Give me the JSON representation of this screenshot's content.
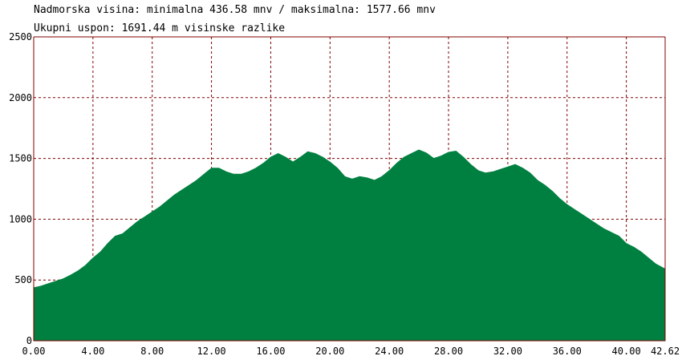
{
  "info": {
    "line1": "Nadmorska visina: minimalna 436.58 mnv / maksimalna: 1577.66 mnv",
    "line2": "Ukupni uspon: 1691.44 m visinske razlike"
  },
  "colors": {
    "fill": "#008040",
    "grid": "#800000",
    "axis": "#800000",
    "background": "#ffffff"
  },
  "chart_data": {
    "type": "area",
    "title": "",
    "xlabel": "",
    "ylabel": "",
    "xlim": [
      0,
      42.62
    ],
    "ylim": [
      0,
      2500
    ],
    "grid": true,
    "legend": "none",
    "x_ticks": [
      "0.00",
      "4.00",
      "8.00",
      "12.00",
      "16.00",
      "20.00",
      "24.00",
      "28.00",
      "32.00",
      "36.00",
      "40.00",
      "42.62"
    ],
    "x_tick_values": [
      0,
      4,
      8,
      12,
      16,
      20,
      24,
      28,
      32,
      36,
      40,
      42.62
    ],
    "y_ticks": [
      "0",
      "500",
      "1000",
      "1500",
      "2000",
      "2500"
    ],
    "y_tick_values": [
      0,
      500,
      1000,
      1500,
      2000,
      2500
    ],
    "series": [
      {
        "x": [
          0,
          0.5,
          1,
          1.5,
          2,
          2.5,
          3,
          3.5,
          4,
          4.5,
          5,
          5.5,
          6,
          6.5,
          7,
          7.5,
          8,
          8.5,
          9,
          9.5,
          10,
          10.5,
          11,
          11.5,
          12,
          12.5,
          13,
          13.5,
          14,
          14.5,
          15,
          15.5,
          16,
          16.5,
          17,
          17.5,
          18,
          18.5,
          19,
          19.5,
          20,
          20.5,
          21,
          21.5,
          22,
          22.5,
          23,
          23.5,
          24,
          24.5,
          25,
          25.5,
          26,
          26.5,
          27,
          27.5,
          28,
          28.5,
          29,
          29.5,
          30,
          30.5,
          31,
          31.5,
          32,
          32.5,
          33,
          33.5,
          34,
          34.5,
          35,
          35.5,
          36,
          36.5,
          37,
          37.5,
          38,
          38.5,
          39,
          39.5,
          40,
          40.5,
          41,
          41.5,
          42,
          42.62
        ],
        "y": [
          436,
          450,
          470,
          490,
          510,
          540,
          575,
          620,
          680,
          730,
          800,
          860,
          880,
          930,
          980,
          1020,
          1060,
          1100,
          1150,
          1200,
          1240,
          1280,
          1320,
          1370,
          1420,
          1420,
          1390,
          1370,
          1370,
          1390,
          1420,
          1460,
          1510,
          1540,
          1510,
          1470,
          1510,
          1555,
          1540,
          1510,
          1470,
          1420,
          1350,
          1330,
          1350,
          1340,
          1320,
          1350,
          1400,
          1460,
          1510,
          1540,
          1570,
          1545,
          1500,
          1520,
          1550,
          1560,
          1510,
          1450,
          1400,
          1380,
          1390,
          1410,
          1430,
          1450,
          1420,
          1380,
          1320,
          1280,
          1230,
          1170,
          1120,
          1080,
          1040,
          1000,
          960,
          920,
          890,
          860,
          800,
          770,
          730,
          680,
          630,
          590
        ]
      }
    ]
  }
}
